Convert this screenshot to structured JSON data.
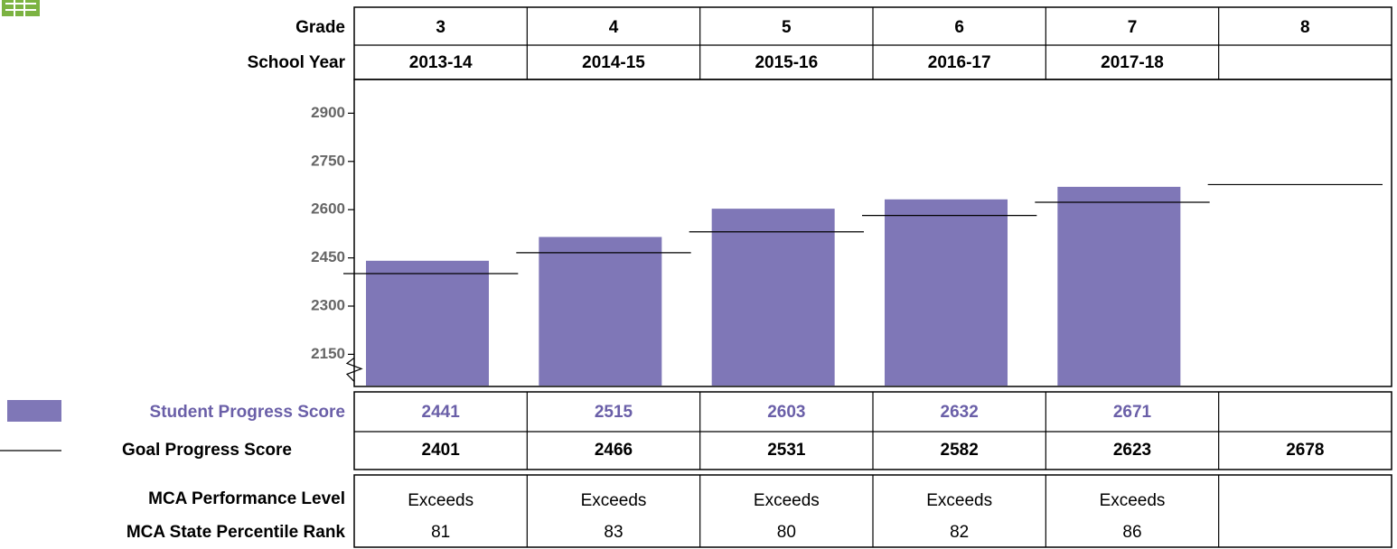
{
  "chart_data": {
    "type": "bar",
    "row_labels": {
      "grade": "Grade",
      "school_year": "School Year",
      "performance": "MCA Performance Level",
      "percentile": "MCA State Percentile Rank"
    },
    "categories": [
      3,
      4,
      5,
      6,
      7,
      8
    ],
    "school_years": [
      "2013-14",
      "2014-15",
      "2015-16",
      "2016-17",
      "2017-18",
      null
    ],
    "series": [
      {
        "name": "Student Progress Score",
        "color": "#7f77b7",
        "values": [
          2441,
          2515,
          2603,
          2632,
          2671,
          null
        ]
      },
      {
        "name": "Goal Progress Score",
        "color": "#000000",
        "values": [
          2401,
          2466,
          2531,
          2582,
          2623,
          2678
        ]
      }
    ],
    "performance_levels": [
      "Exceeds",
      "Exceeds",
      "Exceeds",
      "Exceeds",
      "Exceeds",
      null
    ],
    "percentile_ranks": [
      81,
      83,
      80,
      82,
      86,
      null
    ],
    "ylim": [
      2050,
      3005
    ],
    "yticks": [
      2150,
      2300,
      2450,
      2600,
      2750,
      2900
    ],
    "axis_break": true
  }
}
